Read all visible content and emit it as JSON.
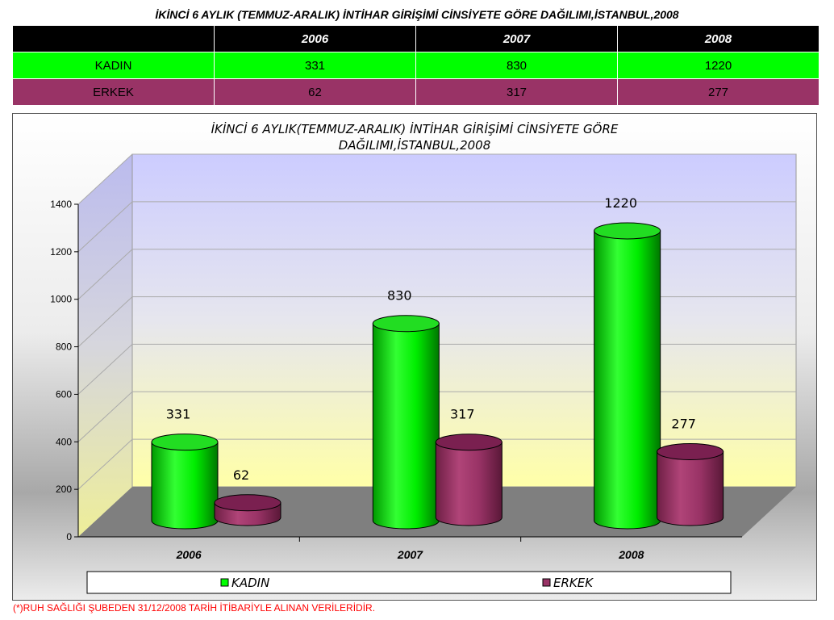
{
  "page_title": "İKİNCİ 6 AYLIK (TEMMUZ-ARALIK) İNTİHAR GİRİŞİMİ  CİNSİYETE GÖRE DAĞILIMI,İSTANBUL,2008",
  "table": {
    "headers": [
      "",
      "2006",
      "2007",
      "2008"
    ],
    "rows": [
      {
        "label": "KADIN",
        "values": [
          "331",
          "830",
          "1220"
        ]
      },
      {
        "label": "ERKEK",
        "values": [
          "62",
          "317",
          "277"
        ]
      }
    ]
  },
  "chart_data": {
    "type": "bar",
    "title_lines": [
      "İKİNCİ 6 AYLIK(TEMMUZ-ARALIK) İNTİHAR GİRİŞİMİ CİNSİYETE GÖRE",
      "DAĞILIMI,İSTANBUL,2008"
    ],
    "categories": [
      "2006",
      "2007",
      "2008"
    ],
    "series": [
      {
        "name": "KADIN",
        "values": [
          331,
          830,
          1220
        ],
        "color": "#00ff00"
      },
      {
        "name": "ERKEK",
        "values": [
          62,
          317,
          277
        ],
        "color": "#993366"
      }
    ],
    "ylim": [
      0,
      1400
    ],
    "yticks": [
      0,
      200,
      400,
      600,
      800,
      1000,
      1200,
      1400
    ],
    "grid": true,
    "legend_position": "bottom",
    "shape": "3d-cylinder"
  },
  "footnote": "(*)RUH SAĞLIĞI ŞUBEDEN 31/12/2008 TARİH İTİBARİYLE ALINAN VERİLERİDİR."
}
